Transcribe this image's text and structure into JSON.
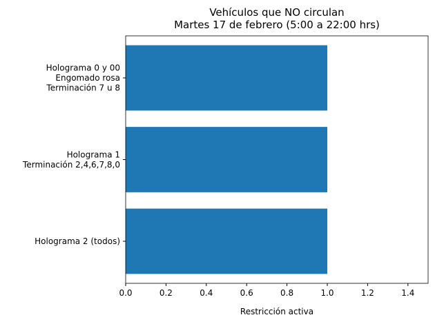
{
  "chart_data": {
    "type": "barh",
    "title": "Vehículos que NO circulan\nMartes 17 de febrero (5:00 a 22:00 hrs)",
    "xlabel": "Restricción activa",
    "categories": [
      "Holograma 2 (todos)",
      "Holograma 1\nTerminación 2,4,6,7,8,0",
      "Holograma 0 y 00\nEngomado rosa\nTerminación 7 u 8"
    ],
    "values": [
      1,
      1,
      1
    ],
    "color": "#1f77b4",
    "xlim": [
      0,
      1.5
    ],
    "xticks": [
      {
        "value": 0,
        "label": "0.0"
      },
      {
        "value": 0.2,
        "label": "0.2"
      },
      {
        "value": 0.4,
        "label": "0.4"
      },
      {
        "value": 0.6,
        "label": "0.6"
      },
      {
        "value": 0.8,
        "label": "0.8"
      },
      {
        "value": 1,
        "label": "1.0"
      },
      {
        "value": 1.2,
        "label": "1.2"
      },
      {
        "value": 1.4,
        "label": "1.4"
      }
    ],
    "grid": false
  }
}
